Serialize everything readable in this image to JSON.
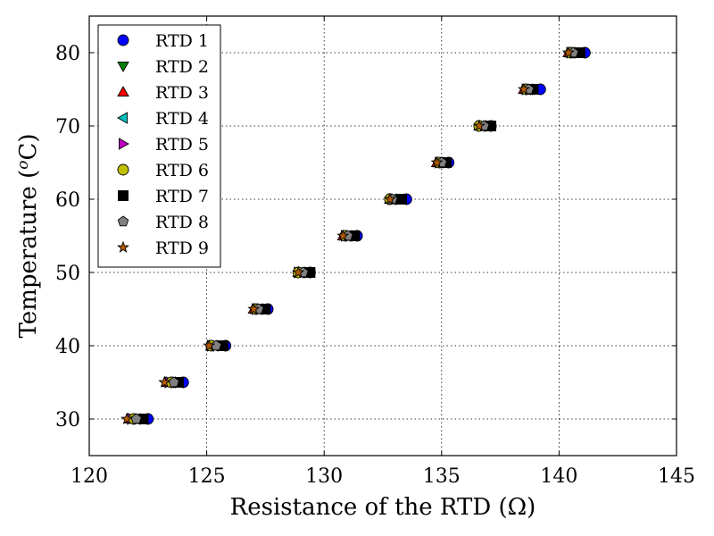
{
  "chart_data": {
    "type": "scatter",
    "title": "",
    "xlabel": "Resistance of the RTD (Ω)",
    "ylabel_prefix": "Temperature (",
    "ylabel_super": "o",
    "ylabel_suffix": "C)",
    "xlim": [
      120,
      145
    ],
    "ylim": [
      25,
      85
    ],
    "xticks": [
      120,
      125,
      130,
      135,
      140,
      145
    ],
    "yticks": [
      30,
      40,
      50,
      60,
      70,
      80
    ],
    "grid": true,
    "legend_position": "top-left",
    "x_categories": [
      30,
      35,
      40,
      45,
      50,
      55,
      60,
      65,
      70,
      75,
      80
    ],
    "series": [
      {
        "name": "RTD 1",
        "marker": "circle",
        "color": "#0000ff",
        "points": [
          [
            122.5,
            30
          ],
          [
            124.0,
            35
          ],
          [
            125.8,
            40
          ],
          [
            127.6,
            45
          ],
          [
            129.4,
            50
          ],
          [
            131.4,
            55
          ],
          [
            133.5,
            60
          ],
          [
            135.3,
            65
          ],
          [
            137.1,
            70
          ],
          [
            139.2,
            75
          ],
          [
            141.1,
            80
          ]
        ]
      },
      {
        "name": "RTD 2",
        "marker": "triangle-down",
        "color": "#008000",
        "points": [
          [
            121.9,
            30
          ],
          [
            123.6,
            35
          ],
          [
            125.3,
            40
          ],
          [
            127.3,
            45
          ],
          [
            129.1,
            50
          ],
          [
            131.1,
            55
          ],
          [
            133.0,
            60
          ],
          [
            135.0,
            65
          ],
          [
            136.8,
            70
          ],
          [
            138.8,
            75
          ],
          [
            140.6,
            80
          ]
        ]
      },
      {
        "name": "RTD 3",
        "marker": "triangle-up",
        "color": "#ff0000",
        "points": [
          [
            121.7,
            30
          ],
          [
            123.3,
            35
          ],
          [
            125.2,
            40
          ],
          [
            127.0,
            45
          ],
          [
            128.9,
            50
          ],
          [
            130.8,
            55
          ],
          [
            132.8,
            60
          ],
          [
            134.8,
            65
          ],
          [
            136.6,
            70
          ],
          [
            138.5,
            75
          ],
          [
            140.4,
            80
          ]
        ]
      },
      {
        "name": "RTD 4",
        "marker": "triangle-left",
        "color": "#00bfbf",
        "points": [
          [
            122.0,
            30
          ],
          [
            123.5,
            35
          ],
          [
            125.3,
            40
          ],
          [
            127.2,
            45
          ],
          [
            129.0,
            50
          ],
          [
            131.0,
            55
          ],
          [
            132.9,
            60
          ],
          [
            134.9,
            65
          ],
          [
            136.7,
            70
          ],
          [
            138.7,
            75
          ],
          [
            140.5,
            80
          ]
        ]
      },
      {
        "name": "RTD 5",
        "marker": "triangle-right",
        "color": "#bf00bf",
        "points": [
          [
            121.8,
            30
          ],
          [
            123.4,
            35
          ],
          [
            125.2,
            40
          ],
          [
            127.1,
            45
          ],
          [
            128.9,
            50
          ],
          [
            130.9,
            55
          ],
          [
            132.9,
            60
          ],
          [
            134.9,
            65
          ],
          [
            136.7,
            70
          ],
          [
            138.6,
            75
          ],
          [
            140.5,
            80
          ]
        ]
      },
      {
        "name": "RTD 6",
        "marker": "circle",
        "color": "#bfbf00",
        "points": [
          [
            121.9,
            30
          ],
          [
            123.5,
            35
          ],
          [
            125.2,
            40
          ],
          [
            127.1,
            45
          ],
          [
            128.9,
            50
          ],
          [
            130.9,
            55
          ],
          [
            132.8,
            60
          ],
          [
            134.9,
            65
          ],
          [
            136.6,
            70
          ],
          [
            138.6,
            75
          ],
          [
            140.5,
            80
          ]
        ]
      },
      {
        "name": "RTD 7",
        "marker": "square",
        "color": "#000000",
        "points": [
          [
            122.3,
            30
          ],
          [
            123.8,
            35
          ],
          [
            125.7,
            40
          ],
          [
            127.5,
            45
          ],
          [
            129.4,
            50
          ],
          [
            131.3,
            55
          ],
          [
            133.3,
            60
          ],
          [
            135.2,
            65
          ],
          [
            137.1,
            70
          ],
          [
            138.9,
            75
          ],
          [
            140.9,
            80
          ]
        ]
      },
      {
        "name": "RTD 8",
        "marker": "pentagon",
        "color": "#808080",
        "points": [
          [
            122.0,
            30
          ],
          [
            123.6,
            35
          ],
          [
            125.4,
            40
          ],
          [
            127.2,
            45
          ],
          [
            129.1,
            50
          ],
          [
            131.0,
            55
          ],
          [
            132.9,
            60
          ],
          [
            135.0,
            65
          ],
          [
            136.8,
            70
          ],
          [
            138.7,
            75
          ],
          [
            140.6,
            80
          ]
        ]
      },
      {
        "name": "RTD 9",
        "marker": "star",
        "color": "#b35900",
        "points": [
          [
            121.6,
            30
          ],
          [
            123.2,
            35
          ],
          [
            125.1,
            40
          ],
          [
            127.0,
            45
          ],
          [
            128.9,
            50
          ],
          [
            130.8,
            55
          ],
          [
            132.8,
            60
          ],
          [
            134.8,
            65
          ],
          [
            136.6,
            70
          ],
          [
            138.5,
            75
          ],
          [
            140.4,
            80
          ]
        ]
      }
    ]
  }
}
